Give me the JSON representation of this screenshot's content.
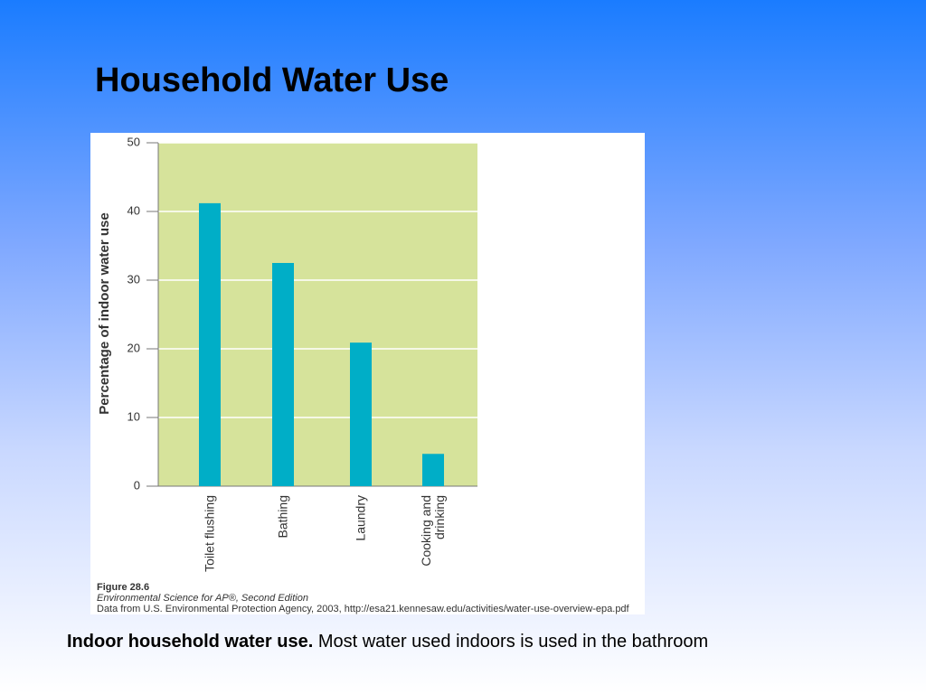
{
  "slide": {
    "title": "Household Water Use",
    "caption_bold": "Indoor household water use.",
    "caption_text": "Most water used indoors is used in the bathroom"
  },
  "chart_data": {
    "type": "bar",
    "y_label": "Percentage of indoor water use",
    "categories": [
      "Toilet flushing",
      "Bathing",
      "Laundry",
      "Cooking and drinking"
    ],
    "values": [
      41.2,
      32.5,
      20.9,
      4.7
    ],
    "color": "#00aec7",
    "ylim": [
      0,
      50
    ],
    "yticks": [
      0,
      10,
      20,
      30,
      40,
      50
    ],
    "grid": true,
    "figure": {
      "label": "Figure 28.6",
      "source": "Environmental Science for AP®, Second Edition",
      "credit": "Data from U.S. Environmental Protection Agency, 2003, http://esa21.kennesaw.edu/activities/water-use-overview-epa.pdf"
    }
  }
}
